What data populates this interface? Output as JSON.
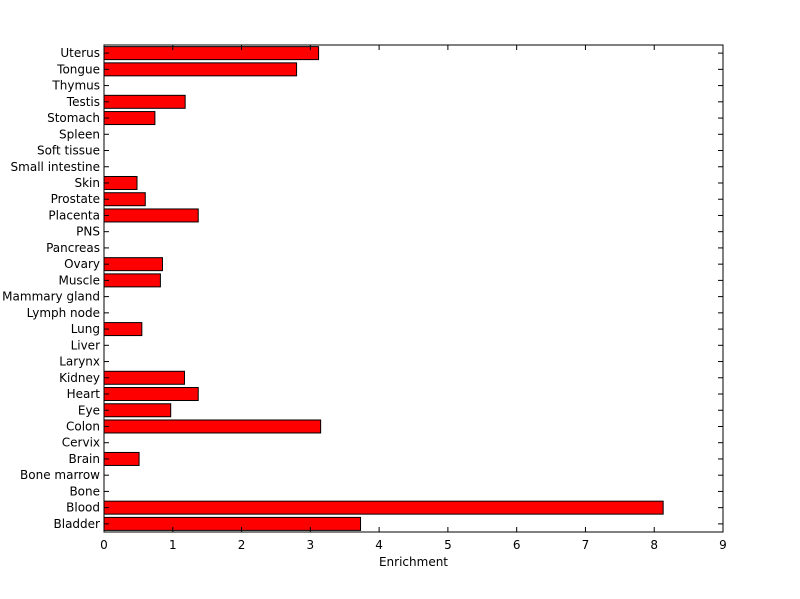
{
  "chart_data": {
    "type": "bar",
    "orientation": "horizontal",
    "categories": [
      "Uterus",
      "Tongue",
      "Thymus",
      "Testis",
      "Stomach",
      "Spleen",
      "Soft tissue",
      "Small intestine",
      "Skin",
      "Prostate",
      "Placenta",
      "PNS",
      "Pancreas",
      "Ovary",
      "Muscle",
      "Mammary gland",
      "Lymph node",
      "Lung",
      "Liver",
      "Larynx",
      "Kidney",
      "Heart",
      "Eye",
      "Colon",
      "Cervix",
      "Brain",
      "Bone marrow",
      "Bone",
      "Blood",
      "Bladder"
    ],
    "values": [
      3.12,
      2.8,
      0,
      1.18,
      0.74,
      0,
      0,
      0,
      0.48,
      0.6,
      1.37,
      0,
      0,
      0.85,
      0.82,
      0,
      0,
      0.55,
      0,
      0,
      1.17,
      1.37,
      0.97,
      3.15,
      0,
      0.51,
      0,
      0,
      8.13,
      3.73
    ],
    "xlabel": "Enrichment",
    "ylabel": "",
    "title": "",
    "xlim": [
      0,
      9
    ],
    "xticks": [
      "0",
      "1",
      "2",
      "3",
      "4",
      "5",
      "6",
      "7",
      "8",
      "9"
    ],
    "grid": false,
    "bar_color": "#ff0000",
    "bar_edge_color": "#000000"
  }
}
